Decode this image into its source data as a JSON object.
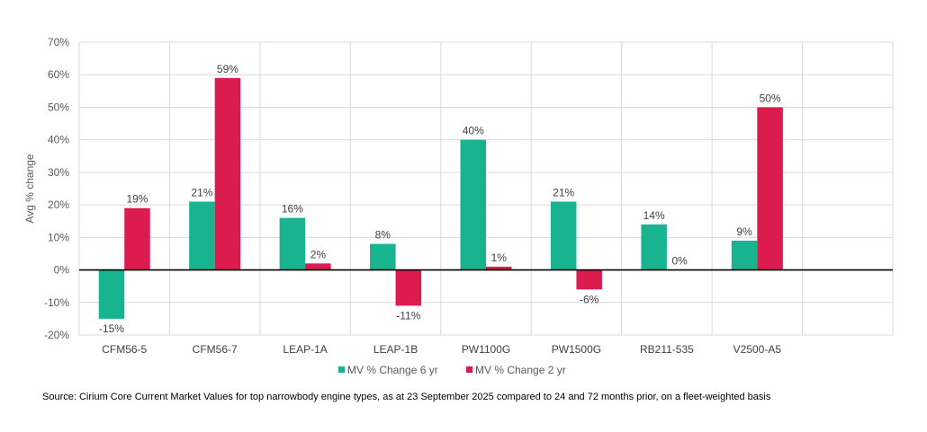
{
  "chart_data": {
    "type": "bar",
    "title": "",
    "xlabel": "",
    "ylabel": "Avg % change",
    "ylim": [
      -20,
      70
    ],
    "yticks": [
      "-20%",
      "-10%",
      "0%",
      "10%",
      "20%",
      "30%",
      "40%",
      "50%",
      "60%",
      "70%"
    ],
    "grid": true,
    "legend_position": "bottom",
    "categories": [
      "CFM56-5",
      "CFM56-7",
      "LEAP-1A",
      "LEAP-1B",
      "PW1100G",
      "PW1500G",
      "RB211-535",
      "V2500-A5"
    ],
    "series": [
      {
        "name": "MV % Change 6 yr",
        "color": "#17b48f",
        "values": [
          -15,
          21,
          16,
          8,
          40,
          21,
          14,
          9
        ],
        "labels": [
          "-15%",
          "21%",
          "16%",
          "8%",
          "40%",
          "21%",
          "14%",
          "9%"
        ]
      },
      {
        "name": "MV % Change 2 yr",
        "color": "#dc1c4f",
        "values": [
          19,
          59,
          2,
          -11,
          1,
          -6,
          0,
          50
        ],
        "labels": [
          "19%",
          "59%",
          "2%",
          "-11%",
          "1%",
          "-6%",
          "0%",
          "50%"
        ]
      }
    ]
  },
  "source": "Source: Cirium Core Current Market Values for top narrowbody engine types, as at 23 September 2025 compared to 24 and 72 months prior, on a fleet-weighted basis"
}
